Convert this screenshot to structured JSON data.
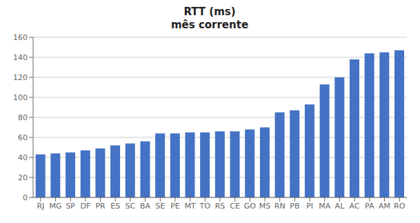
{
  "chart_data": {
    "type": "bar",
    "title": "RTT (ms)",
    "subtitle": "mês corrente",
    "categories": [
      "RJ",
      "MG",
      "SP",
      "DF",
      "PR",
      "ES",
      "SC",
      "BA",
      "SE",
      "PE",
      "MT",
      "TO",
      "RS",
      "CE",
      "GO",
      "MS",
      "RN",
      "PB",
      "PI",
      "MA",
      "AL",
      "AC",
      "PA",
      "AM",
      "RO"
    ],
    "values": [
      43,
      44,
      45,
      47,
      49,
      52,
      54,
      56,
      64,
      64,
      65,
      65,
      66,
      66,
      68,
      70,
      85,
      87,
      93,
      113,
      120,
      138,
      144,
      145,
      147
    ],
    "color": "#4472C4",
    "ylim": [
      0,
      160
    ],
    "yticks": [
      0,
      20,
      40,
      60,
      80,
      100,
      120,
      140,
      160
    ],
    "grid": true
  }
}
